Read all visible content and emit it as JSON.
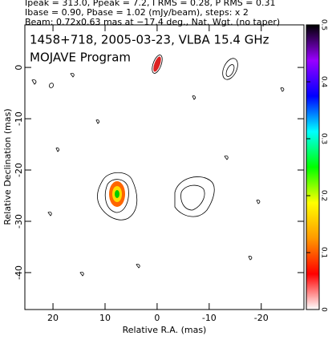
{
  "chart_data": {
    "type": "contour",
    "header": [
      "Ipeak = 313.0, Ppeak = 7.2, I RMS = 0.28, P RMS = 0.31",
      "Ibase = 0.90, Pbase = 1.02 (mJy/beam), steps: x 2",
      "Beam: 0.72x0.63 mas at −17.4 deg., Nat. Wgt. (no taper)"
    ],
    "title": "1458+718, 2005-03-23, VLBA 15.4 GHz",
    "subtitle": "MOJAVE Program",
    "xlabel": "Relative R.A. (mas)",
    "ylabel": "Relative Declination (mas)",
    "xlim": [
      25.4,
      -28.2
    ],
    "xticks": [
      20,
      10,
      0,
      -10,
      -20
    ],
    "ylim": [
      -47.2,
      8.3
    ],
    "yticks": [
      0,
      -10,
      -20,
      -30,
      -40
    ],
    "colorbar": {
      "lim": [
        0,
        0.5
      ],
      "ticks": [
        0,
        0.1,
        0.2,
        0.3,
        0.4,
        0.5
      ],
      "colors": [
        "#ffffff",
        "#ff0000",
        "#ff9900",
        "#ffff00",
        "#00ff00",
        "#00ffff",
        "#0000ff",
        "#9900ff",
        "#000000"
      ]
    }
  }
}
